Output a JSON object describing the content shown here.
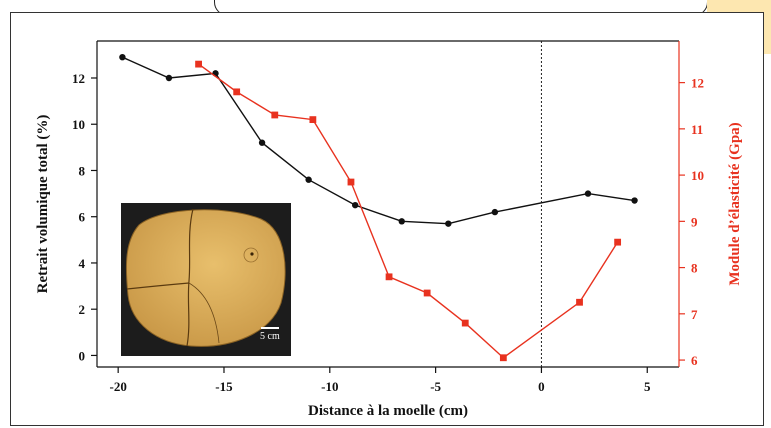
{
  "chart_data": {
    "type": "line",
    "xlabel": "Distance à la moelle (cm)",
    "ylabel_left": "Retrait volumique total (%)",
    "ylabel_right": "Module d’élasticité (Gpa)",
    "xlim": [
      -21,
      6.5
    ],
    "xticks": [
      -20,
      -15,
      -10,
      -5,
      0,
      5
    ],
    "ylim_left": [
      -0.5,
      13.6
    ],
    "yticks_left": [
      0,
      2,
      4,
      6,
      8,
      10,
      12
    ],
    "ylim_right": [
      5.85,
      12.9
    ],
    "yticks_right": [
      6,
      7,
      8,
      9,
      10,
      11,
      12
    ],
    "reference_line_x": 0,
    "series": [
      {
        "axis": "left",
        "color": "#111111",
        "marker": "circle",
        "x": [
          -19.8,
          -17.6,
          -15.4,
          -13.2,
          -11.0,
          -8.8,
          -6.6,
          -4.4,
          -2.2,
          2.2,
          4.4
        ],
        "y": [
          12.9,
          12.0,
          12.2,
          9.2,
          7.6,
          6.5,
          5.8,
          5.7,
          6.2,
          7.0,
          6.7
        ]
      },
      {
        "axis": "right",
        "color": "#e8321f",
        "marker": "square",
        "x": [
          -16.2,
          -14.4,
          -12.6,
          -10.8,
          -9.0,
          -7.2,
          -5.4,
          -3.6,
          -1.8,
          1.8,
          3.6
        ],
        "y": [
          12.4,
          11.8,
          11.3,
          11.2,
          9.85,
          7.8,
          7.45,
          6.8,
          6.05,
          7.25,
          8.55
        ]
      }
    ],
    "inset_scale_label": "5 cm"
  },
  "colors": {
    "left_axis": "#111111",
    "right_axis": "#e8321f",
    "wood": "#e0b461",
    "inset_background": "#1c1c1c"
  }
}
